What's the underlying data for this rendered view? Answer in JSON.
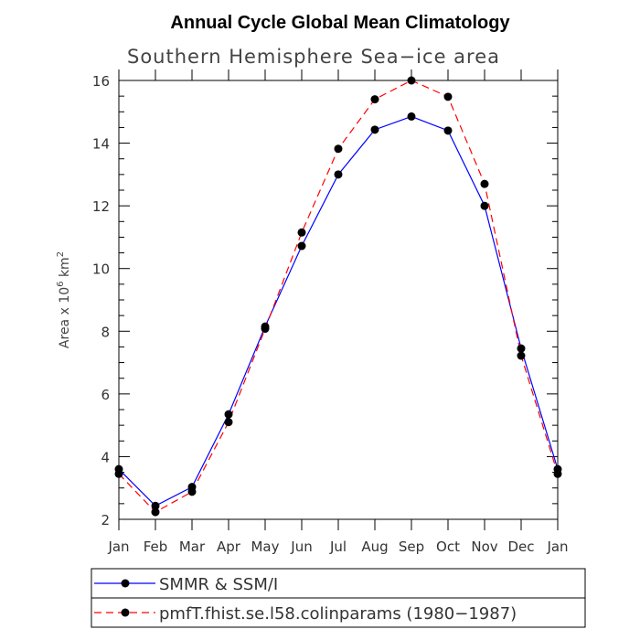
{
  "chart_data": {
    "type": "line",
    "title": "Annual Cycle Global Mean Climatology",
    "subtitle": "Southern Hemisphere Sea−ice area",
    "ylabel": "Area x 10",
    "ylabel_exp": "6",
    "ylabel_unit": " km",
    "ylabel_unit_exp": "2",
    "xlabel": "",
    "categories": [
      "Jan",
      "Feb",
      "Mar",
      "Apr",
      "May",
      "Jun",
      "Jul",
      "Aug",
      "Sep",
      "Oct",
      "Nov",
      "Dec",
      "Jan"
    ],
    "ylim": [
      2,
      16
    ],
    "yticks": [
      2,
      4,
      6,
      8,
      10,
      12,
      14,
      16
    ],
    "series": [
      {
        "name": "SMMR & SSM/I",
        "color": "#0000ff",
        "dash": "solid",
        "values": [
          3.6,
          2.43,
          3.03,
          5.35,
          8.15,
          10.72,
          13.0,
          14.43,
          14.85,
          14.4,
          12.0,
          7.45,
          3.6
        ]
      },
      {
        "name": "pmfT.fhist.se.l58.colinparams (1980−1987)",
        "color": "#ff0000",
        "dash": "dashed",
        "values": [
          3.45,
          2.23,
          2.88,
          5.1,
          8.08,
          11.15,
          13.82,
          15.4,
          16.0,
          15.48,
          12.7,
          7.22,
          3.45
        ]
      }
    ]
  }
}
